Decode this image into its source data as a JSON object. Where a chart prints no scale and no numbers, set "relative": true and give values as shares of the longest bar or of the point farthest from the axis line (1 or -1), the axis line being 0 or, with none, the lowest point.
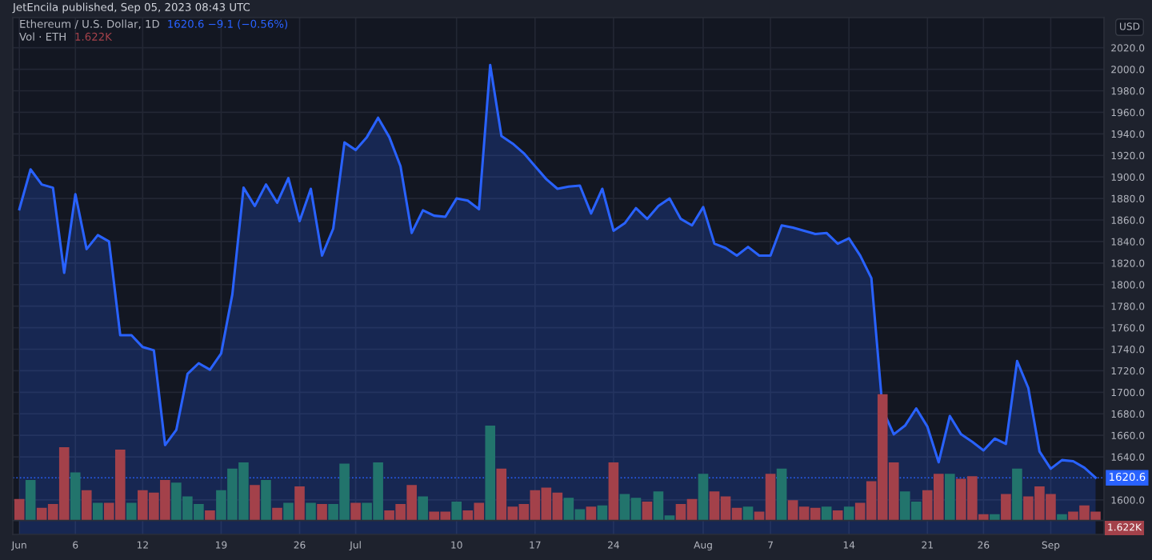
{
  "chart_data": [
    {
      "type": "area",
      "title": "Ethereum / U.S. Dollar, 1D",
      "annotations": [
        "JetEncila published, Sep 05, 2023 08:43 UTC",
        "1620.6 −9.1 (−0.56%)",
        "USD"
      ],
      "x": [
        "2023-06-01",
        "2023-06-02",
        "2023-06-03",
        "2023-06-04",
        "2023-06-05",
        "2023-06-06",
        "2023-06-07",
        "2023-06-08",
        "2023-06-09",
        "2023-06-10",
        "2023-06-11",
        "2023-06-12",
        "2023-06-13",
        "2023-06-14",
        "2023-06-15",
        "2023-06-16",
        "2023-06-17",
        "2023-06-18",
        "2023-06-19",
        "2023-06-20",
        "2023-06-21",
        "2023-06-22",
        "2023-06-23",
        "2023-06-24",
        "2023-06-25",
        "2023-06-26",
        "2023-06-27",
        "2023-06-28",
        "2023-06-29",
        "2023-06-30",
        "2023-07-01",
        "2023-07-02",
        "2023-07-03",
        "2023-07-04",
        "2023-07-05",
        "2023-07-06",
        "2023-07-07",
        "2023-07-08",
        "2023-07-09",
        "2023-07-10",
        "2023-07-11",
        "2023-07-12",
        "2023-07-13",
        "2023-07-14",
        "2023-07-15",
        "2023-07-16",
        "2023-07-17",
        "2023-07-18",
        "2023-07-19",
        "2023-07-20",
        "2023-07-21",
        "2023-07-22",
        "2023-07-23",
        "2023-07-24",
        "2023-07-25",
        "2023-07-26",
        "2023-07-27",
        "2023-07-28",
        "2023-07-29",
        "2023-07-30",
        "2023-07-31",
        "2023-08-01",
        "2023-08-02",
        "2023-08-03",
        "2023-08-04",
        "2023-08-05",
        "2023-08-06",
        "2023-08-07",
        "2023-08-08",
        "2023-08-09",
        "2023-08-10",
        "2023-08-11",
        "2023-08-12",
        "2023-08-13",
        "2023-08-14",
        "2023-08-15",
        "2023-08-16",
        "2023-08-17",
        "2023-08-18",
        "2023-08-19",
        "2023-08-20",
        "2023-08-21",
        "2023-08-22",
        "2023-08-23",
        "2023-08-24",
        "2023-08-25",
        "2023-08-26",
        "2023-08-27",
        "2023-08-28",
        "2023-08-29",
        "2023-08-30",
        "2023-08-31",
        "2023-09-01",
        "2023-09-02",
        "2023-09-03",
        "2023-09-04",
        "2023-09-05"
      ],
      "values": [
        1870,
        1907,
        1893,
        1890,
        1811,
        1884,
        1833,
        1846,
        1840,
        1753,
        1753,
        1742,
        1739,
        1651,
        1665,
        1717,
        1727,
        1721,
        1736,
        1791,
        1890,
        1873,
        1893,
        1876,
        1899,
        1859,
        1889,
        1827,
        1852,
        1932,
        1925,
        1937,
        1955,
        1937,
        1910,
        1848,
        1869,
        1864,
        1863,
        1880,
        1878,
        1870,
        2004,
        1938,
        1931,
        1922,
        1910,
        1898,
        1889,
        1891,
        1892,
        1866,
        1889,
        1850,
        1857,
        1871,
        1861,
        1873,
        1880,
        1861,
        1855,
        1872,
        1838,
        1834,
        1827,
        1835,
        1827,
        1827,
        1855,
        1853,
        1850,
        1847,
        1848,
        1838,
        1843,
        1827,
        1806,
        1684,
        1661,
        1669,
        1685,
        1668,
        1635,
        1678,
        1661,
        1654,
        1646,
        1657,
        1652,
        1729,
        1704,
        1645,
        1629,
        1637,
        1636,
        1630,
        1620.6
      ],
      "color": "#2962ff",
      "xlim": [
        "2023-05-31T10:00",
        "2023-09-05T18:00"
      ],
      "ylim": [
        1568,
        2048
      ],
      "xticks": [
        {
          "value": "2023-06-01",
          "label": "Jun"
        },
        {
          "value": "2023-06-06",
          "label": "6"
        },
        {
          "value": "2023-06-12",
          "label": "12"
        },
        {
          "value": "2023-06-19",
          "label": "19"
        },
        {
          "value": "2023-06-26",
          "label": "26"
        },
        {
          "value": "2023-07-01",
          "label": "Jul"
        },
        {
          "value": "2023-07-10",
          "label": "10"
        },
        {
          "value": "2023-07-17",
          "label": "17"
        },
        {
          "value": "2023-07-24",
          "label": "24"
        },
        {
          "value": "2023-08-01",
          "label": "Aug"
        },
        {
          "value": "2023-08-07",
          "label": "7"
        },
        {
          "value": "2023-08-14",
          "label": "14"
        },
        {
          "value": "2023-08-21",
          "label": "21"
        },
        {
          "value": "2023-08-26",
          "label": "26"
        },
        {
          "value": "2023-09-01",
          "label": "Sep"
        }
      ],
      "yticks": [
        {
          "value": 1600,
          "label": "1600.0"
        },
        {
          "value": 1640,
          "label": "1640.0"
        },
        {
          "value": 1660,
          "label": "1660.0"
        },
        {
          "value": 1680,
          "label": "1680.0"
        },
        {
          "value": 1700,
          "label": "1700.0"
        },
        {
          "value": 1720,
          "label": "1720.0"
        },
        {
          "value": 1740,
          "label": "1740.0"
        },
        {
          "value": 1760,
          "label": "1760.0"
        },
        {
          "value": 1780,
          "label": "1780.0"
        },
        {
          "value": 1800,
          "label": "1800.0"
        },
        {
          "value": 1820,
          "label": "1820.0"
        },
        {
          "value": 1840,
          "label": "1840.0"
        },
        {
          "value": 1860,
          "label": "1860.0"
        },
        {
          "value": 1880,
          "label": "1880.0"
        },
        {
          "value": 1900,
          "label": "1900.0"
        },
        {
          "value": 1920,
          "label": "1920.0"
        },
        {
          "value": 1940,
          "label": "1940.0"
        },
        {
          "value": 1960,
          "label": "1960.0"
        },
        {
          "value": 1980,
          "label": "1980.0"
        },
        {
          "value": 2000,
          "label": "2000.0"
        },
        {
          "value": 2020,
          "label": "2020.0"
        }
      ],
      "grid": true,
      "ref_lines": [
        {
          "axis": "y",
          "value": 1620.6,
          "label": "1620.6",
          "color": "#2962ff",
          "line_style": "dotted"
        }
      ]
    },
    {
      "type": "bar",
      "title": "Vol · ETH",
      "relative": true,
      "tick_labels": false,
      "annotations": [
        "1.622K",
        "1.622K"
      ],
      "xlim": [
        "2023-05-31T10:00",
        "2023-09-05T18:00"
      ],
      "x": [
        "2023-06-01",
        "2023-06-02",
        "2023-06-03",
        "2023-06-04",
        "2023-06-05",
        "2023-06-06",
        "2023-06-07",
        "2023-06-08",
        "2023-06-09",
        "2023-06-10",
        "2023-06-11",
        "2023-06-12",
        "2023-06-13",
        "2023-06-14",
        "2023-06-15",
        "2023-06-16",
        "2023-06-17",
        "2023-06-18",
        "2023-06-19",
        "2023-06-20",
        "2023-06-21",
        "2023-06-22",
        "2023-06-23",
        "2023-06-24",
        "2023-06-25",
        "2023-06-26",
        "2023-06-27",
        "2023-06-28",
        "2023-06-29",
        "2023-06-30",
        "2023-07-01",
        "2023-07-02",
        "2023-07-03",
        "2023-07-04",
        "2023-07-05",
        "2023-07-06",
        "2023-07-07",
        "2023-07-08",
        "2023-07-09",
        "2023-07-10",
        "2023-07-11",
        "2023-07-12",
        "2023-07-13",
        "2023-07-14",
        "2023-07-15",
        "2023-07-16",
        "2023-07-17",
        "2023-07-18",
        "2023-07-19",
        "2023-07-20",
        "2023-07-21",
        "2023-07-22",
        "2023-07-23",
        "2023-07-24",
        "2023-07-25",
        "2023-07-26",
        "2023-07-27",
        "2023-07-28",
        "2023-07-29",
        "2023-07-30",
        "2023-07-31",
        "2023-08-01",
        "2023-08-02",
        "2023-08-03",
        "2023-08-04",
        "2023-08-05",
        "2023-08-06",
        "2023-08-07",
        "2023-08-08",
        "2023-08-09",
        "2023-08-10",
        "2023-08-11",
        "2023-08-12",
        "2023-08-13",
        "2023-08-14",
        "2023-08-15",
        "2023-08-16",
        "2023-08-17",
        "2023-08-18",
        "2023-08-19",
        "2023-08-20",
        "2023-08-21",
        "2023-08-22",
        "2023-08-23",
        "2023-08-24",
        "2023-08-25",
        "2023-08-26",
        "2023-08-27",
        "2023-08-28",
        "2023-08-29",
        "2023-08-30",
        "2023-08-31",
        "2023-09-01",
        "2023-09-02",
        "2023-09-03",
        "2023-09-04",
        "2023-09-05"
      ],
      "values": [
        0.17,
        0.32,
        0.1,
        0.13,
        0.58,
        0.38,
        0.24,
        0.14,
        0.14,
        0.56,
        0.14,
        0.24,
        0.22,
        0.32,
        0.3,
        0.19,
        0.13,
        0.08,
        0.24,
        0.41,
        0.46,
        0.28,
        0.32,
        0.1,
        0.14,
        0.27,
        0.14,
        0.13,
        0.13,
        0.45,
        0.14,
        0.14,
        0.46,
        0.08,
        0.13,
        0.28,
        0.19,
        0.07,
        0.07,
        0.15,
        0.08,
        0.14,
        0.75,
        0.41,
        0.11,
        0.13,
        0.24,
        0.26,
        0.22,
        0.18,
        0.09,
        0.11,
        0.12,
        0.46,
        0.21,
        0.18,
        0.15,
        0.23,
        0.04,
        0.13,
        0.17,
        0.37,
        0.23,
        0.19,
        0.1,
        0.11,
        0.07,
        0.37,
        0.41,
        0.16,
        0.11,
        0.1,
        0.11,
        0.08,
        0.11,
        0.14,
        0.31,
        1.0,
        0.46,
        0.23,
        0.15,
        0.24,
        0.37,
        0.37,
        0.33,
        0.35,
        0.05,
        0.05,
        0.21,
        0.41,
        0.19,
        0.27,
        0.21,
        0.05,
        0.07,
        0.12,
        0.07
      ],
      "colors": [
        "#a3414a",
        "#22746c",
        "#a3414a",
        "#a3414a",
        "#a3414a",
        "#22746c",
        "#a3414a",
        "#22746c",
        "#a3414a",
        "#a3414a",
        "#22746c",
        "#a3414a",
        "#a3414a",
        "#a3414a",
        "#22746c",
        "#22746c",
        "#22746c",
        "#a3414a",
        "#22746c",
        "#22746c",
        "#22746c",
        "#a3414a",
        "#22746c",
        "#a3414a",
        "#22746c",
        "#a3414a",
        "#22746c",
        "#a3414a",
        "#22746c",
        "#22746c",
        "#a3414a",
        "#22746c",
        "#22746c",
        "#a3414a",
        "#a3414a",
        "#a3414a",
        "#22746c",
        "#a3414a",
        "#a3414a",
        "#22746c",
        "#a3414a",
        "#a3414a",
        "#22746c",
        "#a3414a",
        "#a3414a",
        "#a3414a",
        "#a3414a",
        "#a3414a",
        "#a3414a",
        "#22746c",
        "#22746c",
        "#a3414a",
        "#22746c",
        "#a3414a",
        "#22746c",
        "#22746c",
        "#a3414a",
        "#22746c",
        "#22746c",
        "#a3414a",
        "#a3414a",
        "#22746c",
        "#a3414a",
        "#a3414a",
        "#a3414a",
        "#22746c",
        "#a3414a",
        "#a3414a",
        "#22746c",
        "#a3414a",
        "#a3414a",
        "#a3414a",
        "#22746c",
        "#a3414a",
        "#22746c",
        "#a3414a",
        "#a3414a",
        "#a3414a",
        "#a3414a",
        "#22746c",
        "#22746c",
        "#a3414a",
        "#a3414a",
        "#22746c",
        "#a3414a",
        "#a3414a",
        "#a3414a",
        "#22746c",
        "#a3414a",
        "#22746c",
        "#a3414a",
        "#a3414a",
        "#a3414a",
        "#22746c",
        "#a3414a",
        "#a3414a",
        "#a3414a"
      ]
    }
  ]
}
